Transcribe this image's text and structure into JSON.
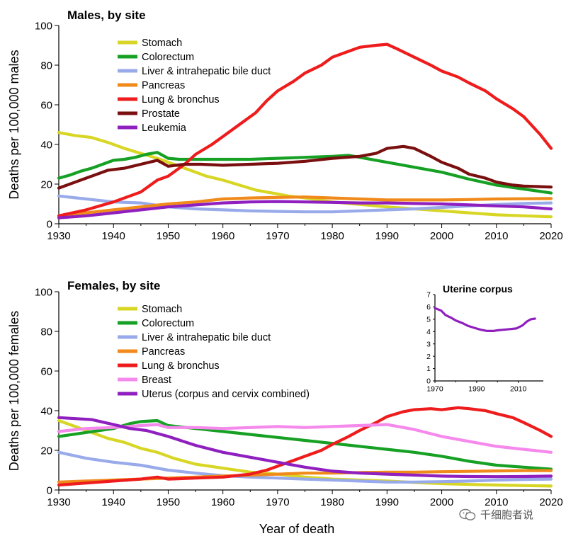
{
  "chart_data": [
    {
      "type": "line",
      "title": "Males, by site",
      "xlabel": "",
      "ylabel": "Deaths per 100,000 males",
      "xlim": [
        1930,
        2020
      ],
      "ylim": [
        0,
        100
      ],
      "xticks": [
        "1930",
        "1940",
        "1950",
        "1960",
        "1970",
        "1980",
        "1990",
        "2000",
        "2010",
        "2020"
      ],
      "yticks": [
        "0",
        "20",
        "40",
        "60",
        "80",
        "100"
      ],
      "legend_position": "upper-left",
      "series": [
        {
          "name": "Stomach",
          "color": "#d8d625",
          "x": [
            1930,
            1933,
            1936,
            1939,
            1942,
            1945,
            1948,
            1951,
            1954,
            1957,
            1960,
            1963,
            1966,
            1969,
            1972,
            1975,
            1980,
            1985,
            1990,
            1995,
            2000,
            2005,
            2010,
            2015,
            2020
          ],
          "y": [
            46,
            44.5,
            43.5,
            41,
            38,
            35.5,
            33,
            30,
            27,
            24,
            22,
            19.5,
            17,
            15.5,
            14,
            13,
            11,
            9.8,
            8.5,
            7.5,
            6.5,
            5.5,
            4.5,
            4,
            3.5
          ]
        },
        {
          "name": "Colorectum",
          "color": "#16a024",
          "x": [
            1930,
            1932,
            1934,
            1936,
            1938,
            1940,
            1942,
            1944,
            1946,
            1948,
            1950,
            1952,
            1955,
            1960,
            1965,
            1970,
            1975,
            1980,
            1983,
            1985,
            1990,
            1995,
            2000,
            2005,
            2010,
            2015,
            2020
          ],
          "y": [
            23,
            24.5,
            26.5,
            28,
            30,
            32,
            32.5,
            33.5,
            35,
            36,
            33,
            32.5,
            32.5,
            32.5,
            32.5,
            33,
            33.5,
            34,
            34.5,
            33.5,
            31,
            28.5,
            26,
            22.5,
            19.5,
            17.5,
            15.5
          ]
        },
        {
          "name": "Liver & intrahepatic bile duct",
          "color": "#99aaea",
          "x": [
            1930,
            1935,
            1940,
            1945,
            1950,
            1955,
            1960,
            1965,
            1970,
            1975,
            1980,
            1985,
            1990,
            1995,
            2000,
            2005,
            2010,
            2015,
            2020
          ],
          "y": [
            14,
            12.5,
            11,
            10.5,
            8.5,
            7.5,
            7,
            6.5,
            6.2,
            6,
            6,
            6.5,
            7,
            7.5,
            8.2,
            9,
            9.7,
            10.2,
            10.5
          ]
        },
        {
          "name": "Pancreas",
          "color": "#f08a1a",
          "x": [
            1930,
            1935,
            1940,
            1945,
            1950,
            1955,
            1960,
            1965,
            1970,
            1975,
            1980,
            1985,
            1990,
            1995,
            2000,
            2005,
            2010,
            2015,
            2020
          ],
          "y": [
            4,
            5.5,
            7,
            8.5,
            10,
            11,
            12.5,
            13,
            13.3,
            13.5,
            13,
            12.5,
            12,
            12,
            12,
            12.2,
            12.5,
            12.6,
            12.7
          ]
        },
        {
          "name": "Lung & bronchus",
          "color": "#ee1c1c",
          "x": [
            1930,
            1935,
            1940,
            1945,
            1948,
            1950,
            1953,
            1955,
            1958,
            1960,
            1963,
            1966,
            1968,
            1970,
            1973,
            1975,
            1978,
            1980,
            1983,
            1985,
            1988,
            1990,
            1992,
            1995,
            1998,
            2000,
            2003,
            2005,
            2008,
            2010,
            2013,
            2015,
            2018,
            2020
          ],
          "y": [
            4,
            7,
            11,
            16,
            22,
            24,
            30,
            35,
            40,
            44,
            50,
            56,
            62,
            67,
            72,
            76,
            80,
            84,
            87,
            89,
            90,
            90.5,
            88,
            84,
            80,
            77,
            74,
            71,
            67,
            63,
            58,
            54,
            45,
            38
          ]
        },
        {
          "name": "Prostate",
          "color": "#7a0f0f",
          "x": [
            1930,
            1933,
            1936,
            1939,
            1942,
            1945,
            1948,
            1950,
            1953,
            1956,
            1960,
            1965,
            1970,
            1975,
            1980,
            1985,
            1988,
            1990,
            1993,
            1995,
            1998,
            2000,
            2003,
            2005,
            2008,
            2010,
            2013,
            2015,
            2020
          ],
          "y": [
            18,
            21,
            24,
            27,
            28,
            30,
            32,
            29,
            30,
            30,
            29.5,
            30,
            30.5,
            31.5,
            33,
            34,
            35.5,
            38,
            39,
            38,
            34,
            31,
            28,
            25,
            23,
            21,
            19.5,
            19,
            18.5
          ]
        },
        {
          "name": "Leukemia",
          "color": "#8f1fbf",
          "x": [
            1930,
            1935,
            1940,
            1945,
            1950,
            1955,
            1960,
            1965,
            1970,
            1975,
            1980,
            1985,
            1990,
            1995,
            2000,
            2005,
            2010,
            2015,
            2020
          ],
          "y": [
            3,
            4,
            5.5,
            7,
            8.5,
            9.5,
            10.5,
            11,
            11.2,
            11,
            10.8,
            10.5,
            10.5,
            10.2,
            10,
            9.5,
            9,
            8.5,
            7.5
          ]
        }
      ]
    },
    {
      "type": "line",
      "title": "Females, by site",
      "xlabel": "Year of death",
      "ylabel": "Deaths per 100,000 females",
      "xlim": [
        1930,
        2020
      ],
      "ylim": [
        0,
        100
      ],
      "xticks": [
        "1930",
        "1940",
        "1950",
        "1960",
        "1970",
        "1980",
        "1990",
        "2000",
        "2010",
        "2020"
      ],
      "yticks": [
        "0",
        "20",
        "40",
        "60",
        "80",
        "100"
      ],
      "legend_position": "upper-left",
      "series": [
        {
          "name": "Stomach",
          "color": "#d8d625",
          "x": [
            1930,
            1933,
            1936,
            1939,
            1942,
            1945,
            1948,
            1951,
            1955,
            1960,
            1965,
            1970,
            1975,
            1980,
            1985,
            1990,
            1995,
            2000,
            2005,
            2010,
            2015,
            2020
          ],
          "y": [
            35,
            32,
            29,
            26,
            24,
            21,
            19,
            16,
            13,
            11,
            9,
            8,
            6.5,
            5.5,
            5,
            4.5,
            3.8,
            3.2,
            2.8,
            2.5,
            2.2,
            2
          ]
        },
        {
          "name": "Colorectum",
          "color": "#16a024",
          "x": [
            1930,
            1935,
            1940,
            1943,
            1945,
            1948,
            1950,
            1955,
            1960,
            1965,
            1970,
            1975,
            1980,
            1985,
            1990,
            1995,
            2000,
            2005,
            2010,
            2015,
            2020
          ],
          "y": [
            27,
            29,
            31,
            33.5,
            34.5,
            35,
            32.5,
            31,
            29.5,
            28,
            26.5,
            25,
            23.5,
            22,
            20.5,
            19,
            17,
            14.5,
            12.5,
            11.5,
            10.5
          ]
        },
        {
          "name": "Liver & intrahepatic bile duct",
          "color": "#99aaea",
          "x": [
            1930,
            1935,
            1940,
            1945,
            1950,
            1955,
            1960,
            1965,
            1970,
            1975,
            1980,
            1985,
            1990,
            1995,
            2000,
            2005,
            2010,
            2015,
            2020
          ],
          "y": [
            19,
            16,
            14,
            12.5,
            10,
            8.5,
            7.2,
            6.5,
            6,
            5.5,
            5,
            4.5,
            4,
            4,
            4.2,
            4.5,
            5,
            5.3,
            5.5
          ]
        },
        {
          "name": "Pancreas",
          "color": "#f08a1a",
          "x": [
            1930,
            1935,
            1940,
            1945,
            1950,
            1955,
            1960,
            1965,
            1970,
            1975,
            1980,
            1985,
            1990,
            1995,
            2000,
            2005,
            2010,
            2015,
            2020
          ],
          "y": [
            4,
            4.5,
            5,
            5.5,
            6,
            6.5,
            7,
            7.5,
            8,
            8.5,
            8.5,
            8.8,
            9,
            9,
            9.2,
            9.4,
            9.6,
            9.8,
            9.8
          ]
        },
        {
          "name": "Lung & bronchus",
          "color": "#ee1c1c",
          "x": [
            1930,
            1935,
            1940,
            1945,
            1948,
            1950,
            1955,
            1960,
            1965,
            1968,
            1970,
            1973,
            1975,
            1978,
            1980,
            1983,
            1985,
            1988,
            1990,
            1993,
            1995,
            1998,
            2000,
            2003,
            2005,
            2008,
            2010,
            2013,
            2015,
            2018,
            2020
          ],
          "y": [
            2.5,
            3.5,
            4.5,
            5.5,
            6.5,
            5.5,
            6,
            6.5,
            8,
            10,
            12,
            15,
            17,
            20,
            23,
            27,
            30,
            34,
            37,
            39.5,
            40.5,
            41,
            40.5,
            41.5,
            41,
            40,
            38.5,
            36.5,
            34,
            30,
            27
          ]
        },
        {
          "name": "Breast",
          "color": "#f589ec",
          "x": [
            1930,
            1935,
            1940,
            1945,
            1948,
            1950,
            1955,
            1960,
            1965,
            1970,
            1975,
            1980,
            1985,
            1990,
            1995,
            2000,
            2005,
            2010,
            2015,
            2020
          ],
          "y": [
            29.5,
            31,
            31.5,
            32.5,
            33,
            31.5,
            31.5,
            31,
            31.5,
            32,
            31.5,
            32,
            32.5,
            33,
            30.5,
            27,
            24.5,
            22,
            20.5,
            19
          ]
        },
        {
          "name": "Uterus (corpus and cervix combined)",
          "color": "#8f1fbf",
          "x": [
            1930,
            1933,
            1936,
            1940,
            1943,
            1946,
            1950,
            1955,
            1960,
            1965,
            1970,
            1975,
            1980,
            1985,
            1990,
            1995,
            2000,
            2005,
            2010,
            2015,
            2020
          ],
          "y": [
            36.5,
            36,
            35.5,
            33,
            31,
            30,
            27,
            22.5,
            19,
            16.5,
            14,
            11.5,
            9.5,
            8.5,
            8,
            7.5,
            7,
            6.8,
            6.7,
            6.8,
            7
          ]
        }
      ]
    },
    {
      "type": "line",
      "title": "Uterine corpus",
      "xlabel": "",
      "ylabel": "",
      "xlim": [
        1970,
        2022
      ],
      "ylim": [
        0,
        7
      ],
      "xticks": [
        "1970",
        "1990",
        "2010"
      ],
      "yticks": [
        "0",
        "1",
        "2",
        "3",
        "4",
        "5",
        "6",
        "7"
      ],
      "series": [
        {
          "color": "#8f1fbf",
          "x": [
            1970,
            1973,
            1975,
            1978,
            1980,
            1983,
            1986,
            1989,
            1992,
            1995,
            1998,
            2000,
            2003,
            2006,
            2009,
            2012,
            2014,
            2016,
            2018
          ],
          "y": [
            5.9,
            5.7,
            5.35,
            5.1,
            4.9,
            4.7,
            4.45,
            4.3,
            4.15,
            4.05,
            4.05,
            4.1,
            4.15,
            4.2,
            4.25,
            4.5,
            4.8,
            5.0,
            5.05
          ]
        }
      ]
    }
  ],
  "watermark": {
    "text": "千细胞者说"
  }
}
